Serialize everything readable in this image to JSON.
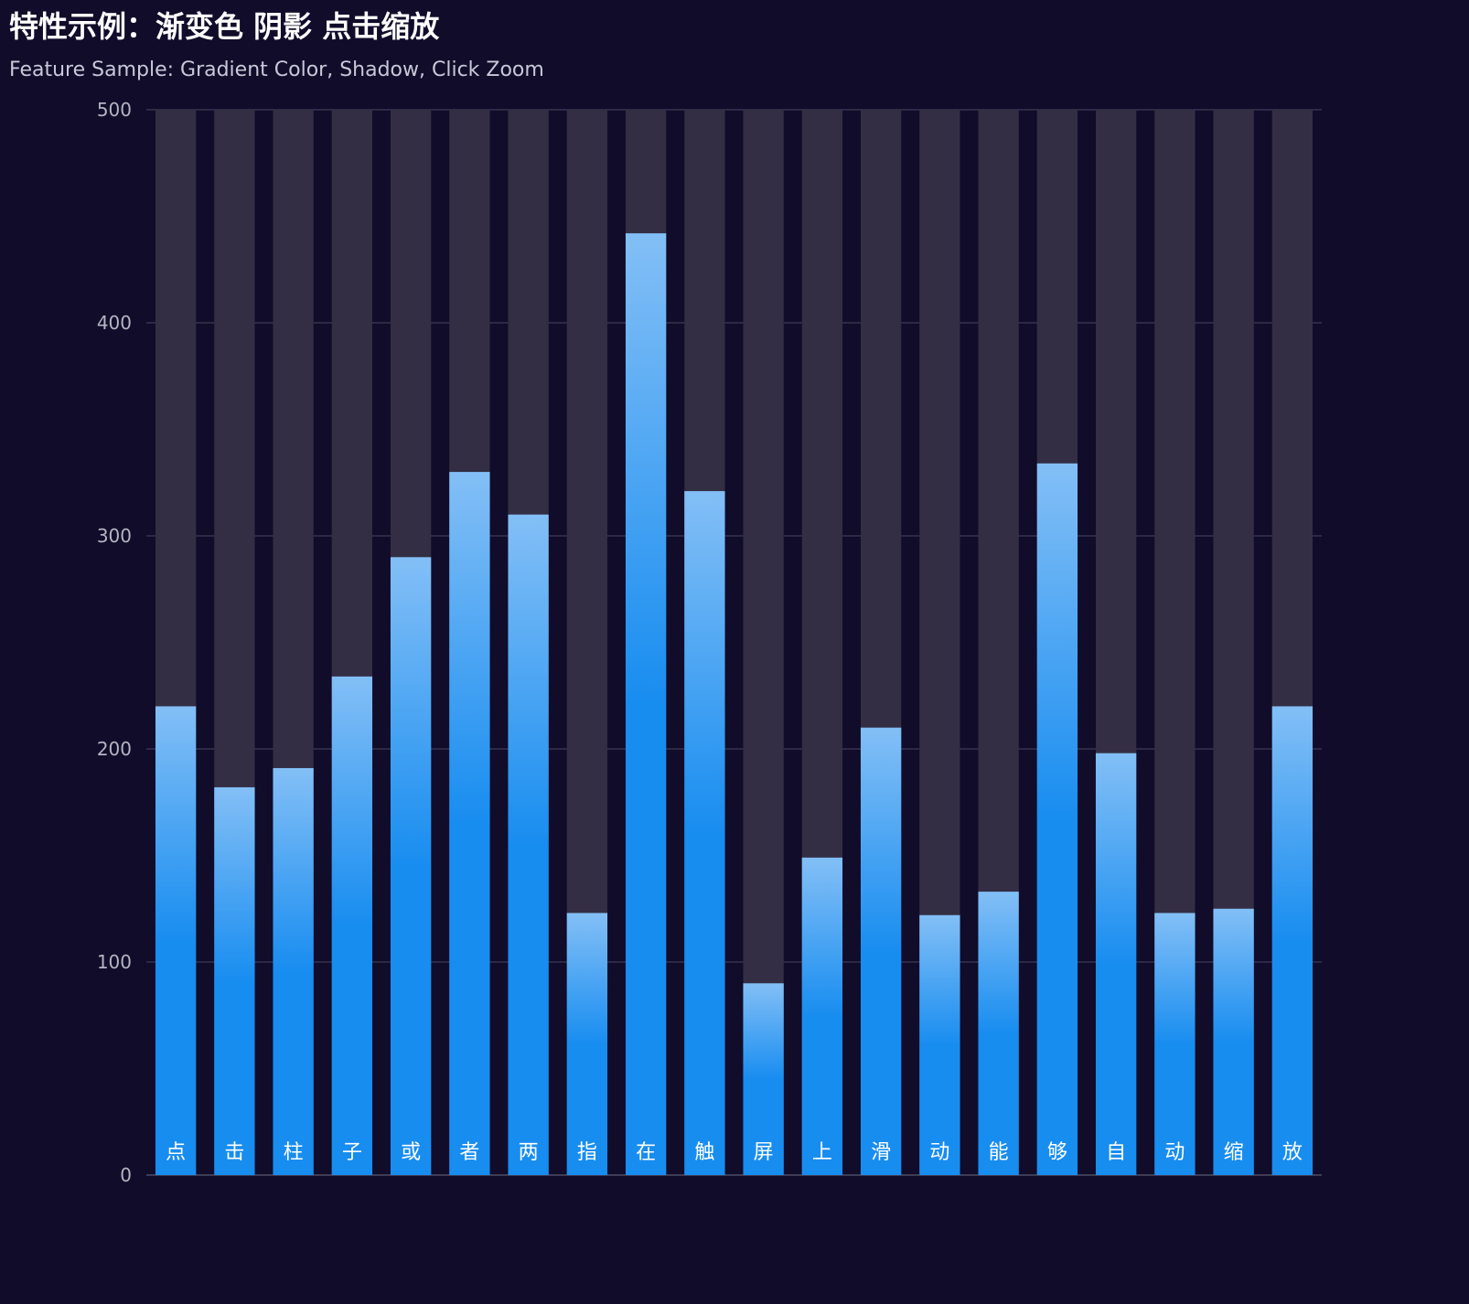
{
  "chart_data": {
    "type": "bar",
    "title": "特性示例：渐变色 阴影 点击缩放",
    "subtitle": "Feature Sample: Gradient Color, Shadow, Click Zoom",
    "categories": [
      "点",
      "击",
      "柱",
      "子",
      "或",
      "者",
      "两",
      "指",
      "在",
      "触",
      "屏",
      "上",
      "滑",
      "动",
      "能",
      "够",
      "自",
      "动",
      "缩",
      "放"
    ],
    "series": [
      {
        "values": [
          220,
          182,
          191,
          234,
          290,
          330,
          310,
          123,
          442,
          321,
          90,
          149,
          210,
          122,
          133,
          334,
          198,
          123,
          125,
          220
        ]
      }
    ],
    "shadow_max": 500,
    "ylim": [
      0,
      500
    ],
    "yticks": [
      0,
      100,
      200,
      300,
      400,
      500
    ],
    "grid": true,
    "legend": "none",
    "colors": {
      "background": "#100c2a",
      "gradient_top": "#83bff6",
      "gradient_mid": "#188df0",
      "gradient_bottom": "#188df0",
      "shadow_bar": "#332e44",
      "grid_line": "#4a4660",
      "axis_line": "#6e6c80",
      "label_text": "#ffffff"
    }
  }
}
